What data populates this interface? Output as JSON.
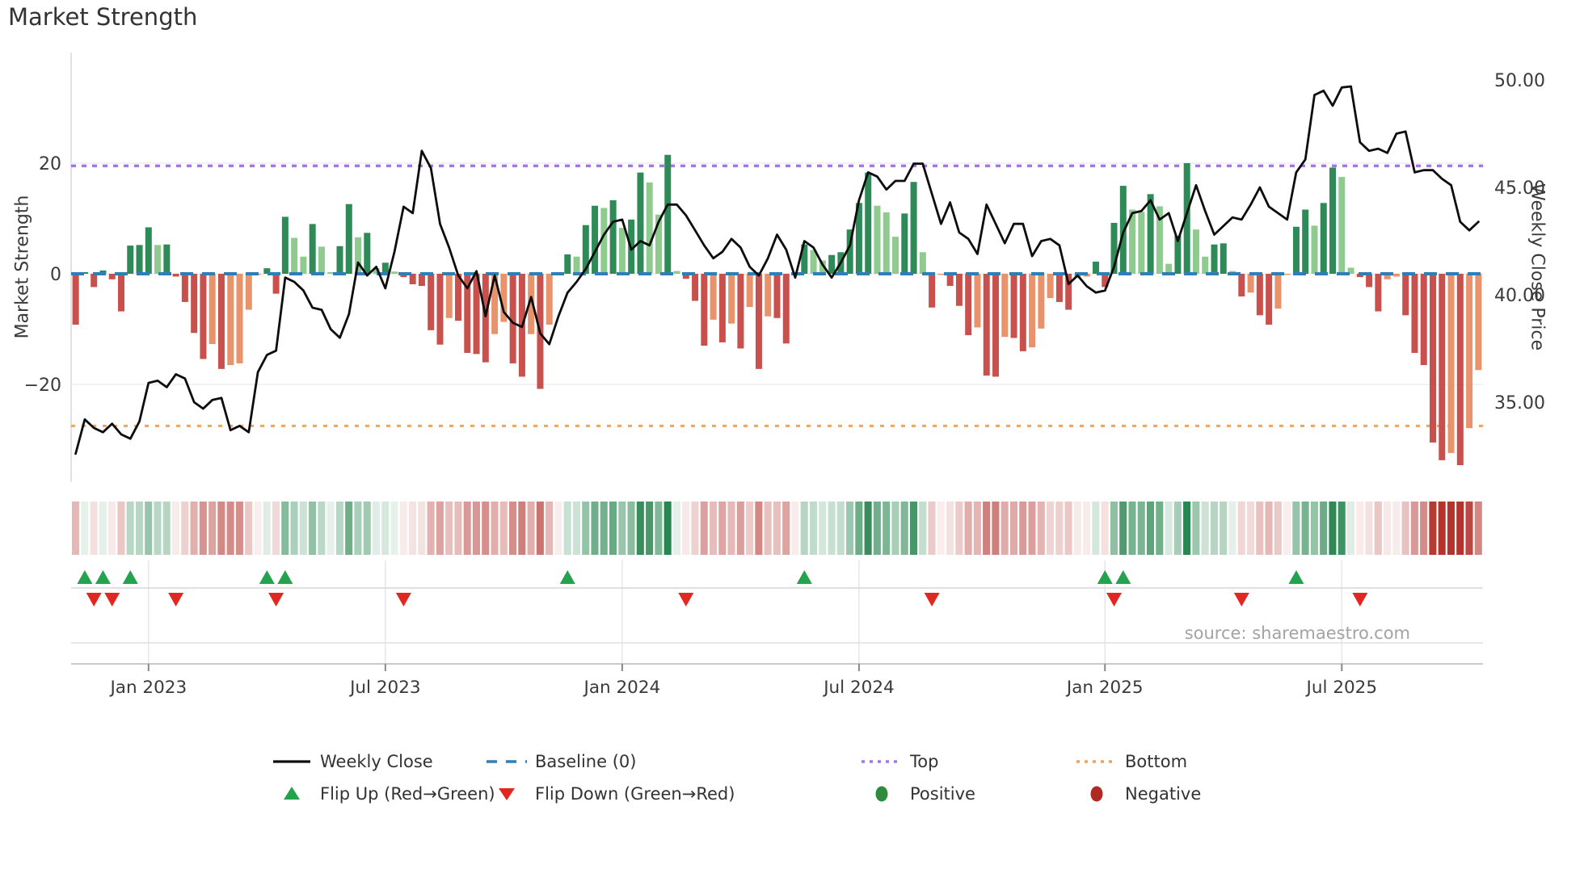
{
  "title": "Market Strength",
  "source": "source: sharemaestro.com",
  "left_axis": {
    "label": "Market Strength",
    "ticks": [
      {
        "value": 20,
        "label": "20"
      },
      {
        "value": 0,
        "label": "0"
      },
      {
        "value": -20,
        "label": "−20"
      }
    ]
  },
  "right_axis": {
    "label": "Weekly Close Price",
    "ticks": [
      {
        "value": 50,
        "label": "50.00"
      },
      {
        "value": 45,
        "label": "45.00"
      },
      {
        "value": 40,
        "label": "40.00"
      },
      {
        "value": 35,
        "label": "35.00"
      }
    ]
  },
  "x_axis": {
    "ticks": [
      {
        "week": 8,
        "label": "Jan 2023"
      },
      {
        "week": 34,
        "label": "Jul 2023"
      },
      {
        "week": 60,
        "label": "Jan 2024"
      },
      {
        "week": 86,
        "label": "Jul 2024"
      },
      {
        "week": 113,
        "label": "Jan 2025"
      },
      {
        "week": 139,
        "label": "Jul 2025"
      }
    ]
  },
  "legend": {
    "weekly_close": "Weekly Close",
    "baseline": "Baseline (0)",
    "top": "Top",
    "bottom": "Bottom",
    "flip_up": "Flip Up (Red→Green)",
    "flip_down": "Flip Down (Green→Red)",
    "positive": "Positive",
    "negative": "Negative"
  },
  "chart_data": {
    "type": "bar+line",
    "title": "Market Strength",
    "x_start": "2022-11-06",
    "x_step": "1 week",
    "n_weeks": 155,
    "left_ylim": [
      -40,
      40
    ],
    "right_ylim": [
      31.3,
      51.3
    ],
    "baseline_level": 0,
    "top_level": 19.5,
    "bottom_level": -27.5,
    "strength": [
      -9.2,
      0.3,
      -2.4,
      0.6,
      -1.0,
      -6.8,
      5.1,
      5.2,
      8.4,
      5.2,
      5.3,
      -0.5,
      -5.1,
      -10.7,
      -15.4,
      -12.7,
      -17.2,
      -16.5,
      -16.2,
      -6.5,
      -0.2,
      1.0,
      -3.6,
      10.3,
      6.5,
      3.1,
      9.0,
      4.9,
      0.3,
      5.0,
      12.6,
      6.6,
      7.4,
      1.0,
      2.0,
      0.4,
      -0.6,
      -1.9,
      -2.2,
      -10.2,
      -12.8,
      -8.0,
      -8.5,
      -14.3,
      -14.5,
      -16.0,
      -10.9,
      -8.7,
      -16.2,
      -18.6,
      -10.9,
      -20.8,
      -9.2,
      -0.2,
      3.5,
      3.1,
      8.8,
      12.3,
      11.9,
      13.3,
      8.3,
      9.8,
      18.3,
      16.5,
      10.7,
      21.5,
      0.5,
      -0.9,
      -4.9,
      -13.0,
      -8.3,
      -12.4,
      -9.0,
      -13.5,
      -6.0,
      -17.2,
      -7.7,
      -8.0,
      -12.6,
      -0.3,
      5.3,
      4.3,
      2.4,
      3.4,
      3.9,
      8.0,
      12.8,
      18.3,
      12.3,
      11.1,
      6.7,
      10.9,
      16.6,
      3.9,
      -6.1,
      -0.2,
      -2.2,
      -5.8,
      -11.1,
      -9.7,
      -18.4,
      -18.6,
      -11.4,
      -11.6,
      -14.0,
      -13.3,
      -9.9,
      -4.4,
      -5.1,
      -6.5,
      -0.7,
      -0.5,
      2.2,
      -2.4,
      9.2,
      15.9,
      11.6,
      11.2,
      14.4,
      12.2,
      1.8,
      6.9,
      20.0,
      8.0,
      3.1,
      5.3,
      5.5,
      0.5,
      -4.1,
      -3.4,
      -7.5,
      -9.2,
      -6.3,
      -0.2,
      8.5,
      11.6,
      8.7,
      12.8,
      19.2,
      17.5,
      1.1,
      -0.6,
      -2.4,
      -6.8,
      -1.0,
      -0.5,
      -7.5,
      -14.3,
      -16.5,
      -30.5,
      -33.7,
      -32.4,
      -34.6,
      -27.9,
      -17.4
    ],
    "weekly_close": [
      32.6,
      34.2,
      33.8,
      33.6,
      34.0,
      33.5,
      33.3,
      34.1,
      35.9,
      36.0,
      35.7,
      36.3,
      36.1,
      35.0,
      34.7,
      35.1,
      35.2,
      33.7,
      33.9,
      33.6,
      36.4,
      37.2,
      37.4,
      40.8,
      40.6,
      40.2,
      39.4,
      39.3,
      38.4,
      38.0,
      39.1,
      41.5,
      40.9,
      41.3,
      40.3,
      42.0,
      44.1,
      43.8,
      46.7,
      45.9,
      43.3,
      42.2,
      40.9,
      40.3,
      41.1,
      39.0,
      40.9,
      39.2,
      38.7,
      38.5,
      39.9,
      38.2,
      37.7,
      39.0,
      40.1,
      40.6,
      41.2,
      42.0,
      42.8,
      43.4,
      43.5,
      42.1,
      42.5,
      42.3,
      43.4,
      44.2,
      44.2,
      43.7,
      43.0,
      42.3,
      41.7,
      42.0,
      42.6,
      42.2,
      41.3,
      40.9,
      41.7,
      42.8,
      42.1,
      40.8,
      42.5,
      42.2,
      41.4,
      40.8,
      41.5,
      42.3,
      44.4,
      45.7,
      45.5,
      44.9,
      45.3,
      45.3,
      46.1,
      46.1,
      44.7,
      43.3,
      44.3,
      42.9,
      42.6,
      41.9,
      44.2,
      43.3,
      42.4,
      43.3,
      43.3,
      41.8,
      42.5,
      42.6,
      42.3,
      40.5,
      40.9,
      40.4,
      40.1,
      40.2,
      41.3,
      42.9,
      43.8,
      43.9,
      44.4,
      43.5,
      43.8,
      42.5,
      43.8,
      45.1,
      43.9,
      42.8,
      43.2,
      43.6,
      43.5,
      44.2,
      45.0,
      44.1,
      43.8,
      43.5,
      45.7,
      46.3,
      49.3,
      49.5,
      48.8,
      49.65,
      49.7,
      47.1,
      46.7,
      46.8,
      46.6,
      47.5,
      47.6,
      45.7,
      45.8,
      45.8,
      45.4,
      45.1,
      43.4,
      43.0,
      43.4
    ],
    "flip_up_weeks": [
      1,
      3,
      6,
      21,
      23,
      54,
      80,
      113,
      115,
      134
    ],
    "flip_down_weeks": [
      2,
      4,
      11,
      22,
      36,
      67,
      94,
      114,
      128,
      141
    ],
    "colors": {
      "bar_pos_strong": "#2e8b57",
      "bar_pos_weak": "#8fca8f",
      "bar_neg_strong": "#c9514d",
      "bar_neg_weak": "#e8936c",
      "price_line": "#0d0d0d",
      "baseline": "#2f7fb6",
      "top_line": "#a476e8",
      "bottom_line": "#f2a25c",
      "flip_up": "#23a34d",
      "flip_down": "#e02722",
      "positive_dot": "#2f8b3c",
      "negative_dot": "#b02a24",
      "heat_green": [
        40,
        134,
        80
      ],
      "heat_red": [
        180,
        52,
        45
      ]
    },
    "legend_position": "bottom",
    "grid": "horizontal-light"
  }
}
